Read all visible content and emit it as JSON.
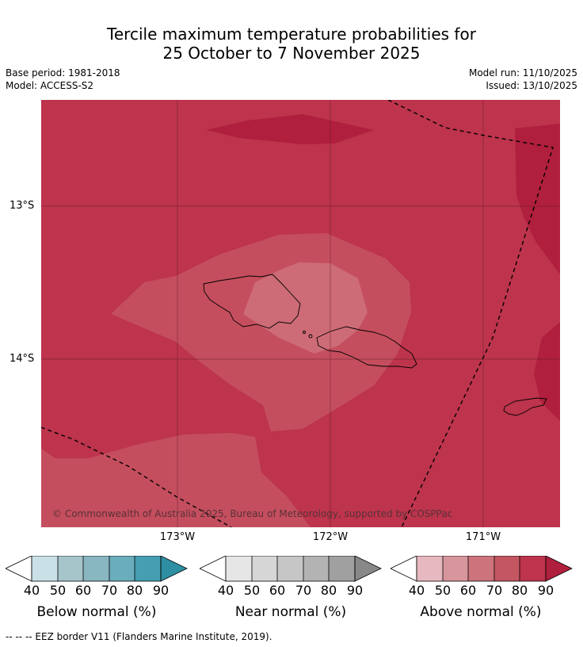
{
  "title_line1": "Tercile maximum temperature probabilities for",
  "title_line2": "25 October to 7 November 2025",
  "meta_left": [
    "Base period: 1981-2018",
    "Model: ACCESS-S2"
  ],
  "meta_right": [
    "Model run: 11/10/2025",
    "Issued: 13/10/2025"
  ],
  "map": {
    "lat_labels": [
      "13°S",
      "14°S"
    ],
    "lon_labels": [
      "173°W",
      "172°W",
      "171°W"
    ],
    "copyright": "© Commonwealth of Australia 2025, Bureau of Meteorology, supported by COSPPac",
    "colors": {
      "above_80": "#bd344c",
      "above_90": "#b01f3d",
      "above_70": "#c44e5e",
      "above_60": "#cd6b76",
      "grid": "#5a1a26",
      "eez": "#000000"
    }
  },
  "colorbars": [
    {
      "label": "Below normal (%)",
      "ticks": [
        "40",
        "50",
        "60",
        "70",
        "80",
        "90"
      ],
      "colors": [
        "#ffffff",
        "#c9e0e6",
        "#a6c5cb",
        "#88b6c1",
        "#6aadbc",
        "#459eb2",
        "#2e8fa3"
      ]
    },
    {
      "label": "Near normal (%)",
      "ticks": [
        "40",
        "50",
        "60",
        "70",
        "80",
        "90"
      ],
      "colors": [
        "#ffffff",
        "#e6e6e6",
        "#d6d6d6",
        "#c6c6c6",
        "#b3b3b3",
        "#a0a0a0",
        "#888888"
      ]
    },
    {
      "label": "Above normal (%)",
      "ticks": [
        "40",
        "50",
        "60",
        "70",
        "80",
        "90"
      ],
      "colors": [
        "#ffffff",
        "#e5b9bf",
        "#d7959c",
        "#cd737b",
        "#c35661",
        "#bd344c",
        "#b01f3d"
      ]
    }
  ],
  "footer": "-- -- -- EEZ border V11 (Flanders Marine Institute, 2019)."
}
